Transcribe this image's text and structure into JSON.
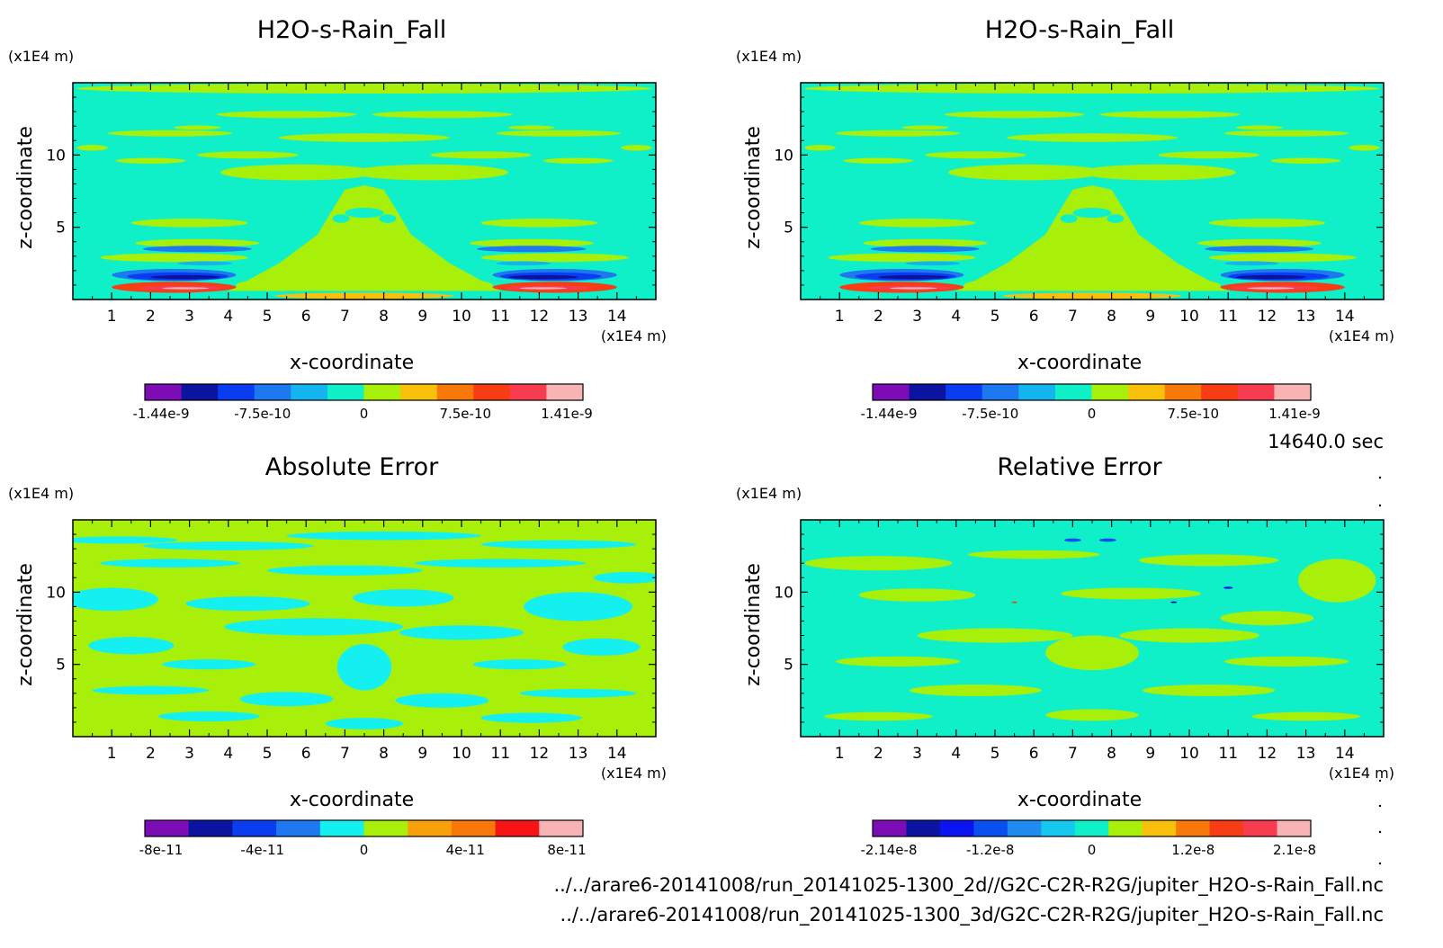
{
  "time_label": "14640.0 sec",
  "footer": {
    "file_2d": "../../arare6-20141008/run_20141025-1300_2d//G2C-C2R-R2G/jupiter_H2O-s-Rain_Fall.nc",
    "file_3d": "../../arare6-20141008/run_20141025-1300_3d/G2C-C2R-R2G/jupiter_H2O-s-Rain_Fall.nc"
  },
  "chart_data": [
    {
      "type": "heatmap",
      "title": "H2O-s-Rain_Fall",
      "xlabel": "x-coordinate",
      "ylabel": "z-coordinate",
      "x_unit": "(x1E4 m)",
      "y_unit": "(x1E4 m)",
      "xlim": [
        0,
        15
      ],
      "ylim": [
        0,
        15
      ],
      "x_ticks": [
        "1",
        "2",
        "3",
        "4",
        "5",
        "6",
        "7",
        "8",
        "9",
        "10",
        "11",
        "12",
        "13",
        "14"
      ],
      "y_ticks": [
        "5",
        "10"
      ],
      "colorbar": {
        "colors": [
          "#7c0cb4",
          "#0a14a0",
          "#0a3cf0",
          "#1e78f0",
          "#14b4f0",
          "#10f0c8",
          "#a8f00a",
          "#f8c00a",
          "#f8780a",
          "#f83c14",
          "#f83c50",
          "#f8b4b4"
        ],
        "labels": [
          "-1.44e-9",
          "-7.5e-10",
          "0",
          "7.5e-10",
          "1.41e-9"
        ]
      }
    },
    {
      "type": "heatmap",
      "title": "H2O-s-Rain_Fall",
      "xlabel": "x-coordinate",
      "ylabel": "z-coordinate",
      "x_unit": "(x1E4 m)",
      "y_unit": "(x1E4 m)",
      "xlim": [
        0,
        15
      ],
      "ylim": [
        0,
        15
      ],
      "x_ticks": [
        "1",
        "2",
        "3",
        "4",
        "5",
        "6",
        "7",
        "8",
        "9",
        "10",
        "11",
        "12",
        "13",
        "14"
      ],
      "y_ticks": [
        "5",
        "10"
      ],
      "colorbar": {
        "colors": [
          "#7c0cb4",
          "#0a14a0",
          "#0a3cf0",
          "#1e78f0",
          "#14b4f0",
          "#10f0c8",
          "#a8f00a",
          "#f8c00a",
          "#f8780a",
          "#f83c14",
          "#f83c50",
          "#f8b4b4"
        ],
        "labels": [
          "-1.44e-9",
          "-7.5e-10",
          "0",
          "7.5e-10",
          "1.41e-9"
        ]
      }
    },
    {
      "type": "heatmap",
      "title": "Absolute Error",
      "xlabel": "x-coordinate",
      "ylabel": "z-coordinate",
      "x_unit": "(x1E4 m)",
      "y_unit": "(x1E4 m)",
      "xlim": [
        0,
        15
      ],
      "ylim": [
        0,
        15
      ],
      "x_ticks": [
        "1",
        "2",
        "3",
        "4",
        "5",
        "6",
        "7",
        "8",
        "9",
        "10",
        "11",
        "12",
        "13",
        "14"
      ],
      "y_ticks": [
        "5",
        "10"
      ],
      "colorbar": {
        "colors": [
          "#7c0cb4",
          "#0a14a0",
          "#0a3cf0",
          "#1e78f0",
          "#14f0f0",
          "#a8f00a",
          "#f8a00a",
          "#f8780a",
          "#f81414",
          "#f8b4b4"
        ],
        "labels": [
          "-8e-11",
          "-4e-11",
          "0",
          "4e-11",
          "8e-11"
        ]
      }
    },
    {
      "type": "heatmap",
      "title": "Relative Error",
      "xlabel": "x-coordinate",
      "ylabel": "z-coordinate",
      "x_unit": "(x1E4 m)",
      "y_unit": "(x1E4 m)",
      "xlim": [
        0,
        15
      ],
      "ylim": [
        0,
        15
      ],
      "x_ticks": [
        "1",
        "2",
        "3",
        "4",
        "5",
        "6",
        "7",
        "8",
        "9",
        "10",
        "11",
        "12",
        "13",
        "14"
      ],
      "y_ticks": [
        "5",
        "10"
      ],
      "colorbar": {
        "colors": [
          "#7c0cb4",
          "#0a14a0",
          "#0a14f0",
          "#0a50f0",
          "#1e8cf0",
          "#14c8f0",
          "#10f0c8",
          "#a8f00a",
          "#f8c00a",
          "#f8780a",
          "#f83c14",
          "#f83c50",
          "#f8b4b4"
        ],
        "labels": [
          "-2.14e-8",
          "-1.2e-8",
          "0",
          "1.2e-8",
          "2.1e-8"
        ]
      }
    }
  ]
}
